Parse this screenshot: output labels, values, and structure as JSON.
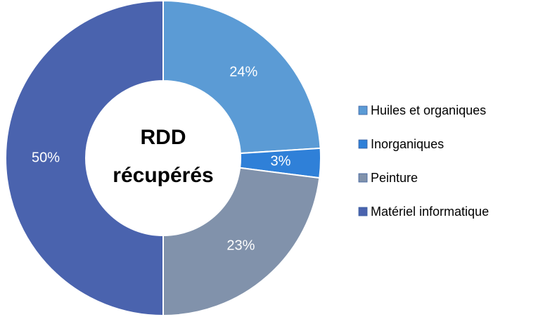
{
  "chart_data": {
    "type": "donut",
    "title_lines": [
      "RDD",
      "récupérés"
    ],
    "categories": [
      "Huiles et organiques",
      "Inorganiques",
      "Peinture",
      "Matériel informatique"
    ],
    "values": [
      24,
      3,
      23,
      50
    ],
    "value_labels": [
      "24%",
      "3%",
      "23%",
      "50%"
    ],
    "colors": [
      "#5b9bd5",
      "#2f80d8",
      "#8192ab",
      "#4a63ae"
    ],
    "legend": "right"
  }
}
